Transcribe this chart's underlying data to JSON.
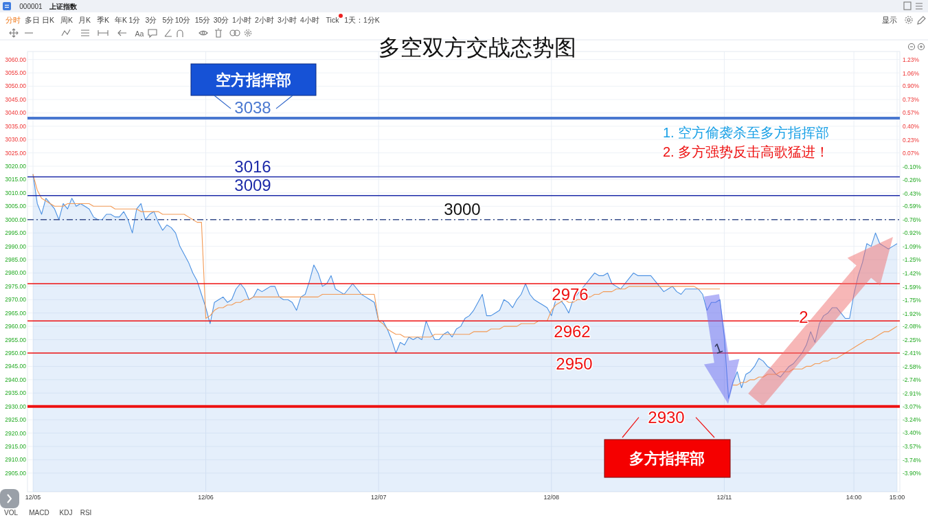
{
  "chart_data": {
    "type": "line",
    "title": "多空双方交战态势图",
    "categories": [
      "12/05",
      null,
      null,
      null,
      null,
      null,
      null,
      null,
      null,
      null,
      null,
      null,
      null,
      null,
      null,
      null,
      null,
      null,
      null,
      null,
      null,
      null,
      null,
      null,
      null,
      null,
      null,
      null,
      null,
      null,
      null,
      null,
      null,
      null,
      null,
      null,
      null,
      null,
      null,
      null,
      "12/06",
      null,
      null,
      null,
      null,
      null,
      null,
      null,
      null,
      null,
      null,
      null,
      null,
      null,
      null,
      null,
      null,
      null,
      null,
      null,
      null,
      null,
      null,
      null,
      null,
      null,
      null,
      null,
      null,
      null,
      null,
      null,
      null,
      null,
      null,
      null,
      null,
      null,
      null,
      null,
      "12/07",
      null,
      null,
      null,
      null,
      null,
      null,
      null,
      null,
      null,
      null,
      null,
      null,
      null,
      null,
      null,
      null,
      null,
      null,
      null,
      null,
      null,
      null,
      null,
      null,
      null,
      null,
      null,
      null,
      null,
      null,
      null,
      null,
      null,
      null,
      null,
      null,
      null,
      null,
      null,
      "12/08",
      null,
      null,
      null,
      null,
      null,
      null,
      null,
      null,
      null,
      null,
      null,
      null,
      null,
      null,
      null,
      null,
      null,
      null,
      null,
      null,
      null,
      null,
      null,
      null,
      null,
      null,
      null,
      null,
      null,
      null,
      null,
      null,
      null,
      null,
      null,
      null,
      null,
      null,
      null,
      "12/11",
      null,
      null,
      null,
      null,
      null,
      null,
      null,
      null,
      null,
      null,
      null,
      null,
      null,
      null,
      null,
      null,
      null,
      null,
      null,
      null,
      null,
      null,
      null,
      null,
      null,
      null,
      null,
      null,
      null,
      "14:00",
      null,
      null,
      null,
      null,
      null,
      null,
      null,
      null,
      null,
      "15:00"
    ],
    "ylim": [
      2898,
      3063
    ],
    "yticks": [
      {
        "value": 2905,
        "label": "2905.00"
      },
      {
        "value": 2910,
        "label": "2910.00"
      },
      {
        "value": 2915,
        "label": "2915.00"
      },
      {
        "value": 2920,
        "label": "2920.00"
      },
      {
        "value": 2925,
        "label": "2925.00"
      },
      {
        "value": 2930,
        "label": "2930.00"
      },
      {
        "value": 2935,
        "label": "2935.00"
      },
      {
        "value": 2940,
        "label": "2940.00"
      },
      {
        "value": 2945,
        "label": "2945.00"
      },
      {
        "value": 2950,
        "label": "2950.00"
      },
      {
        "value": 2955,
        "label": "2955.00"
      },
      {
        "value": 2960,
        "label": "2960.00"
      },
      {
        "value": 2965,
        "label": "2965.00"
      },
      {
        "value": 2970,
        "label": "2970.00"
      },
      {
        "value": 2975,
        "label": "2975.00"
      },
      {
        "value": 2980,
        "label": "2980.00"
      },
      {
        "value": 2985,
        "label": "2985.00"
      },
      {
        "value": 2990,
        "label": "2990.00"
      },
      {
        "value": 2995,
        "label": "2995.00"
      },
      {
        "value": 3000,
        "label": "3000.00"
      },
      {
        "value": 3005,
        "label": "3005.00"
      },
      {
        "value": 3010,
        "label": "3010.00"
      },
      {
        "value": 3015,
        "label": "3015.00"
      },
      {
        "value": 3020,
        "label": "3020.00"
      },
      {
        "value": 3025,
        "label": "3025.00"
      },
      {
        "value": 3030,
        "label": "3030.00"
      },
      {
        "value": 3035,
        "label": "3035.00"
      },
      {
        "value": 3040,
        "label": "3040.00"
      },
      {
        "value": 3045,
        "label": "3045.00"
      },
      {
        "value": 3050,
        "label": "3050.00"
      },
      {
        "value": 3055,
        "label": "3055.00"
      },
      {
        "value": 3060,
        "label": "3060.00"
      }
    ],
    "y2lim": [
      -4.13,
      1.33
    ],
    "y2ticks": [
      {
        "value": -3.9,
        "label": "-3.90%"
      },
      {
        "value": -3.74,
        "label": "-3.74%"
      },
      {
        "value": -3.57,
        "label": "-3.57%"
      },
      {
        "value": -3.4,
        "label": "-3.40%"
      },
      {
        "value": -3.24,
        "label": "-3.24%"
      },
      {
        "value": -3.07,
        "label": "-3.07%"
      },
      {
        "value": -2.91,
        "label": "-2.91%"
      },
      {
        "value": -2.74,
        "label": "-2.74%"
      },
      {
        "value": -2.58,
        "label": "-2.58%"
      },
      {
        "value": -2.41,
        "label": "-2.41%"
      },
      {
        "value": -2.25,
        "label": "-2.25%"
      },
      {
        "value": -2.08,
        "label": "-2.08%"
      },
      {
        "value": -1.92,
        "label": "-1.92%"
      },
      {
        "value": -1.75,
        "label": "-1.75%"
      },
      {
        "value": -1.59,
        "label": "-1.59%"
      },
      {
        "value": -1.42,
        "label": "-1.42%"
      },
      {
        "value": -1.25,
        "label": "-1.25%"
      },
      {
        "value": -1.09,
        "label": "-1.09%"
      },
      {
        "value": -0.92,
        "label": "-0.92%"
      },
      {
        "value": -0.76,
        "label": "-0.76%"
      },
      {
        "value": -0.59,
        "label": "-0.59%"
      },
      {
        "value": -0.43,
        "label": "-0.43%"
      },
      {
        "value": -0.26,
        "label": "-0.26%"
      },
      {
        "value": -0.1,
        "label": "-0.10%"
      },
      {
        "value": 0.07,
        "label": "0.07%"
      },
      {
        "value": 0.23,
        "label": "0.23%"
      },
      {
        "value": 0.4,
        "label": "0.40%"
      },
      {
        "value": 0.57,
        "label": "0.57%"
      },
      {
        "value": 0.73,
        "label": "0.73%"
      },
      {
        "value": 0.9,
        "label": "0.90%"
      },
      {
        "value": 1.06,
        "label": "1.06%"
      },
      {
        "value": 1.23,
        "label": "1.23%"
      }
    ],
    "grid": true,
    "series": [
      {
        "type": "area",
        "color": "#4a90e2",
        "values": [
          3017,
          3006,
          3002,
          3008,
          3006,
          3004,
          3000,
          3006,
          3004,
          3008,
          3005,
          3006,
          3005,
          3004,
          3001,
          3000,
          3000,
          3002,
          3002,
          3001,
          3001,
          3003,
          3000,
          2995,
          3004,
          3006,
          3000,
          3002,
          3003,
          2999,
          2996,
          2998,
          2997,
          2995,
          2990,
          2987,
          2984,
          2980,
          2977,
          2972,
          2967,
          2961,
          2969,
          2970,
          2971,
          2969,
          2970,
          2974,
          2976,
          2974,
          2970,
          2971,
          2974,
          2973,
          2974,
          2975,
          2975,
          2971,
          2970,
          2970,
          2969,
          2966,
          2971,
          2972,
          2977,
          2983,
          2980,
          2975,
          2976,
          2979,
          2974,
          2973,
          2972,
          2974,
          2976,
          2974,
          2972,
          2971,
          2970,
          2969,
          2962,
          2962,
          2959,
          2955,
          2950,
          2954,
          2953,
          2956,
          2955,
          2956,
          2955,
          2962,
          2958,
          2955,
          2955,
          2957,
          2958,
          2956,
          2959,
          2960,
          2963,
          2964,
          2966,
          2969,
          2972,
          2964,
          2964,
          2965,
          2966,
          2970,
          2969,
          2967,
          2970,
          2972,
          2976,
          2972,
          2970,
          2969,
          2968,
          2967,
          2964,
          2970,
          2970,
          2968,
          2965,
          2970,
          2972,
          2974,
          2976,
          2978,
          2980,
          2979,
          2979,
          2980,
          2976,
          2975,
          2974,
          2976,
          2978,
          2980,
          2979,
          2979,
          2979,
          2979,
          2977,
          2975,
          2973,
          2974,
          2975,
          2973,
          2972,
          2974,
          2974,
          2974,
          2974,
          2972,
          2966,
          2969,
          2969,
          2970,
          2956,
          2933,
          2939,
          2943,
          2937,
          2942,
          2943,
          2945,
          2948,
          2947,
          2945,
          2944,
          2942,
          2941,
          2943,
          2945,
          2946,
          2948,
          2950,
          2953,
          2958,
          2954,
          2961,
          2964,
          2965,
          2967,
          2967,
          2965,
          2963,
          2963,
          2972,
          2979,
          2984,
          2991,
          2990,
          2995,
          2991,
          2990,
          2989,
          2990,
          2991
        ]
      },
      {
        "type": "line",
        "color": "#f39a55",
        "values": [
          3017,
          3011,
          3008,
          3007,
          3006,
          3005,
          3005,
          3005,
          3006,
          3006,
          3006,
          3006,
          3006,
          3006,
          3005,
          3005,
          3005,
          3005,
          3005,
          3004,
          3004,
          3004,
          3004,
          3004,
          3004,
          3003,
          3003,
          3003,
          3003,
          3003,
          3002,
          3002,
          3002,
          3002,
          3002,
          3002,
          3001,
          3000,
          2999,
          2999,
          2963,
          2964,
          2966,
          2967,
          2967,
          2968,
          2968,
          2969,
          2969,
          2970,
          2970,
          2971,
          2971,
          2971,
          2971,
          2971,
          2971,
          2971,
          2971,
          2971,
          2971,
          2971,
          2971,
          2971,
          2971,
          2971,
          2971,
          2972,
          2972,
          2972,
          2972,
          2972,
          2972,
          2972,
          2972,
          2972,
          2972,
          2972,
          2972,
          2972,
          2962,
          2961,
          2959,
          2958,
          2957,
          2957,
          2956,
          2956,
          2956,
          2956,
          2956,
          2956,
          2956,
          2957,
          2957,
          2957,
          2957,
          2957,
          2957,
          2957,
          2957,
          2957,
          2958,
          2958,
          2958,
          2958,
          2959,
          2959,
          2959,
          2960,
          2960,
          2960,
          2960,
          2961,
          2961,
          2961,
          2961,
          2962,
          2962,
          2962,
          2966,
          2968,
          2969,
          2970,
          2969,
          2969,
          2970,
          2970,
          2971,
          2971,
          2972,
          2972,
          2973,
          2973,
          2973,
          2974,
          2974,
          2974,
          2975,
          2975,
          2975,
          2975,
          2975,
          2975,
          2975,
          2975,
          2975,
          2975,
          2975,
          2975,
          2975,
          2975,
          2975,
          2975,
          2974,
          2974,
          2974,
          2974,
          2974,
          2974,
          null,
          null,
          2938,
          2938,
          2939,
          2939,
          2940,
          2940,
          2941,
          2941,
          2942,
          2942,
          2942,
          2943,
          2943,
          2943,
          2944,
          2944,
          2944,
          2945,
          2945,
          2946,
          2946,
          2947,
          2947,
          2948,
          2948,
          2949,
          2950,
          2951,
          2952,
          2953,
          2954,
          2955,
          2955,
          2956,
          2957,
          2958,
          2958,
          2959,
          2960
        ]
      }
    ],
    "ref_lines": [
      {
        "axis": "y",
        "value": 3038,
        "label": "3038",
        "color": "#4a78d0"
      },
      {
        "axis": "y",
        "value": 3016,
        "label": "3016",
        "color": "#1c2aa8"
      },
      {
        "axis": "y",
        "value": 3009,
        "label": "3009",
        "color": "#1c2aa8"
      },
      {
        "axis": "y",
        "value": 3000,
        "label": "3000",
        "color": "#3a4f8c",
        "line_style": "dashed"
      },
      {
        "axis": "y",
        "value": 2976,
        "label": "2976",
        "color": "#ee1111"
      },
      {
        "axis": "y",
        "value": 2962,
        "label": "2962",
        "color": "#ee1111"
      },
      {
        "axis": "y",
        "value": 2950,
        "label": "2950",
        "color": "#ee1111"
      },
      {
        "axis": "y",
        "value": 2930,
        "label": "2930",
        "color": "#ee1111"
      }
    ],
    "annotations": [
      "空方指挥部",
      "多方指挥部",
      "1. 空方偷袭杀至多方指挥部",
      "2. 多方强势反击高歌猛进！",
      "1",
      "2",
      "000001",
      "上证指数",
      "分时",
      "多日",
      "日K",
      "周K",
      "月K",
      "季K",
      "年K",
      "1分",
      "3分",
      "5分",
      "10分",
      "15分",
      "30分",
      "1小时",
      "2小时",
      "3小时",
      "4小时",
      "Tick",
      "1天：1分K",
      "Aa",
      "显示",
      "VOL",
      "MACD",
      "KDJ",
      "RSI"
    ]
  }
}
